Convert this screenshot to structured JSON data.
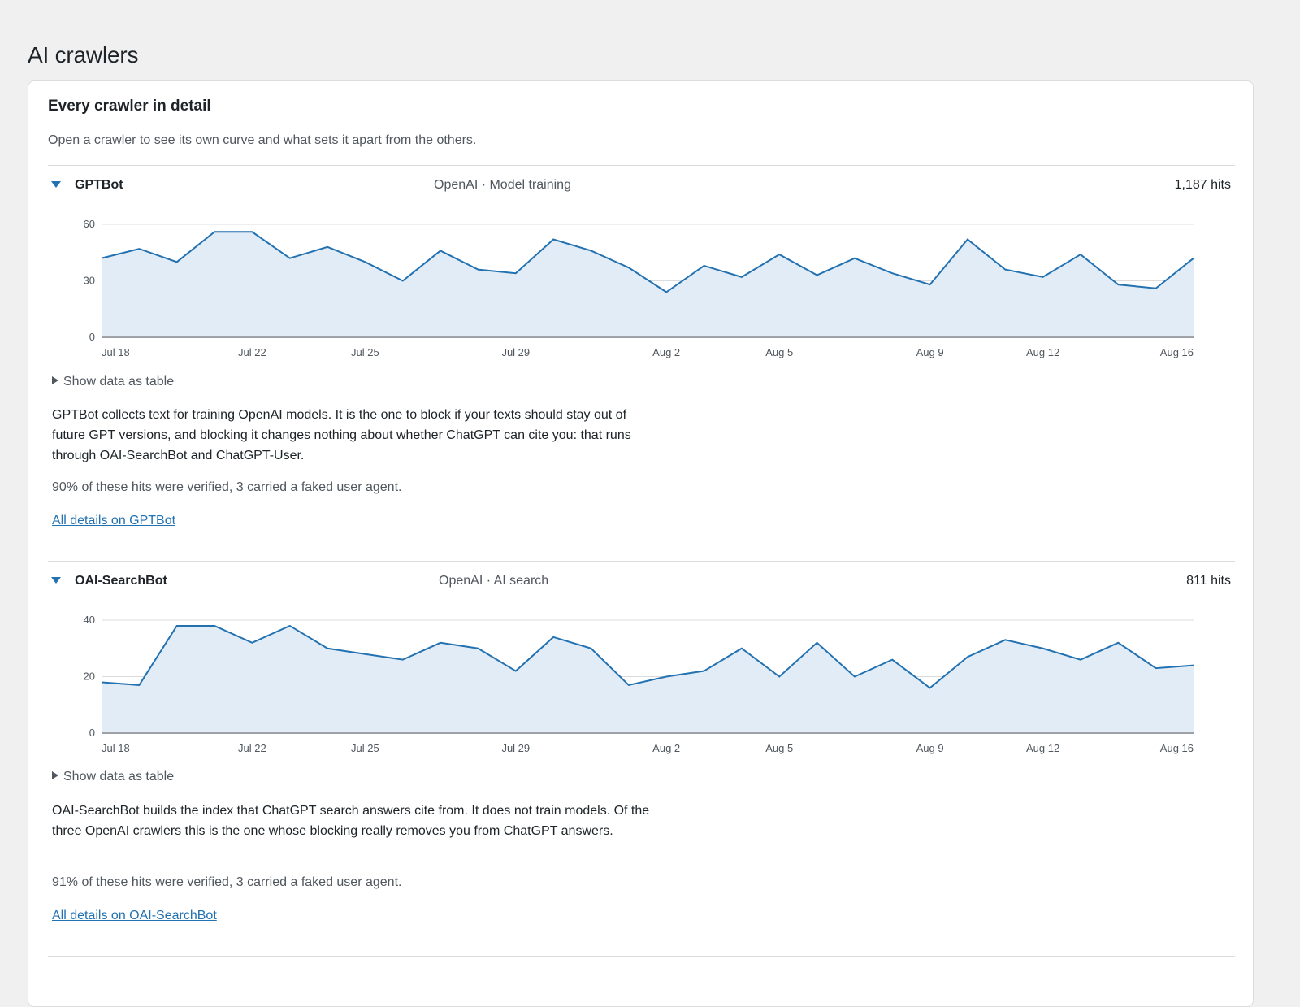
{
  "page": {
    "title": "AI crawlers"
  },
  "card": {
    "title": "Every crawler in detail",
    "description": "Open a crawler to see its own curve and what sets it apart from the others."
  },
  "colors": {
    "line": "#2271b1",
    "fill": "#e2ecf6",
    "grid": "#c3c4c7",
    "link": "#2271b1"
  },
  "crawlers": [
    {
      "name": "GPTBot",
      "meta": "OpenAI · Model training",
      "hits": "1,187 hits",
      "table_toggle": "Show data as table",
      "description": "GPTBot collects text for training OpenAI models. It is the one to block if your texts should stay out of future GPT versions, and blocking it changes nothing about whether ChatGPT can cite you: that runs through OAI-SearchBot and ChatGPT-User.",
      "verification": "90% of these hits were verified, 3 carried a faked user agent.",
      "link_label": "All details on GPTBot",
      "chart_data": {
        "type": "area",
        "x": [
          "Jul 18",
          "Jul 19",
          "Jul 20",
          "Jul 21",
          "Jul 22",
          "Jul 23",
          "Jul 24",
          "Jul 25",
          "Jul 26",
          "Jul 27",
          "Jul 28",
          "Jul 29",
          "Jul 30",
          "Jul 31",
          "Aug 1",
          "Aug 2",
          "Aug 3",
          "Aug 4",
          "Aug 5",
          "Aug 6",
          "Aug 7",
          "Aug 8",
          "Aug 9",
          "Aug 10",
          "Aug 11",
          "Aug 12",
          "Aug 13",
          "Aug 14",
          "Aug 15",
          "Aug 16"
        ],
        "values": [
          42,
          47,
          40,
          56,
          56,
          42,
          48,
          40,
          30,
          46,
          36,
          34,
          52,
          46,
          37,
          24,
          38,
          32,
          44,
          33,
          42,
          34,
          28,
          52,
          36,
          32,
          44,
          28,
          26,
          42
        ],
        "ylim": [
          0,
          60
        ],
        "yticks": [
          0,
          30,
          60
        ],
        "xtick_labels": [
          "Jul 18",
          "Jul 22",
          "Jul 25",
          "Jul 29",
          "Aug 2",
          "Aug 5",
          "Aug 9",
          "Aug 12",
          "Aug 16"
        ],
        "grid": true
      }
    },
    {
      "name": "OAI-SearchBot",
      "meta": "OpenAI · AI search",
      "hits": "811 hits",
      "table_toggle": "Show data as table",
      "description": "OAI-SearchBot builds the index that ChatGPT search answers cite from. It does not train models. Of the three OpenAI crawlers this is the one whose blocking really removes you from ChatGPT answers.",
      "verification": "91% of these hits were verified, 3 carried a faked user agent.",
      "link_label": "All details on OAI-SearchBot",
      "chart_data": {
        "type": "area",
        "x": [
          "Jul 18",
          "Jul 19",
          "Jul 20",
          "Jul 21",
          "Jul 22",
          "Jul 23",
          "Jul 24",
          "Jul 25",
          "Jul 26",
          "Jul 27",
          "Jul 28",
          "Jul 29",
          "Jul 30",
          "Jul 31",
          "Aug 1",
          "Aug 2",
          "Aug 3",
          "Aug 4",
          "Aug 5",
          "Aug 6",
          "Aug 7",
          "Aug 8",
          "Aug 9",
          "Aug 10",
          "Aug 11",
          "Aug 12",
          "Aug 13",
          "Aug 14",
          "Aug 15",
          "Aug 16"
        ],
        "values": [
          18,
          17,
          38,
          38,
          32,
          38,
          30,
          28,
          26,
          32,
          30,
          22,
          34,
          30,
          17,
          20,
          22,
          30,
          20,
          32,
          20,
          26,
          16,
          27,
          33,
          30,
          26,
          32,
          23,
          24
        ],
        "ylim": [
          0,
          40
        ],
        "yticks": [
          0,
          20,
          40
        ],
        "xtick_labels": [
          "Jul 18",
          "Jul 22",
          "Jul 25",
          "Jul 29",
          "Aug 2",
          "Aug 5",
          "Aug 9",
          "Aug 12",
          "Aug 16"
        ],
        "grid": true
      }
    }
  ]
}
